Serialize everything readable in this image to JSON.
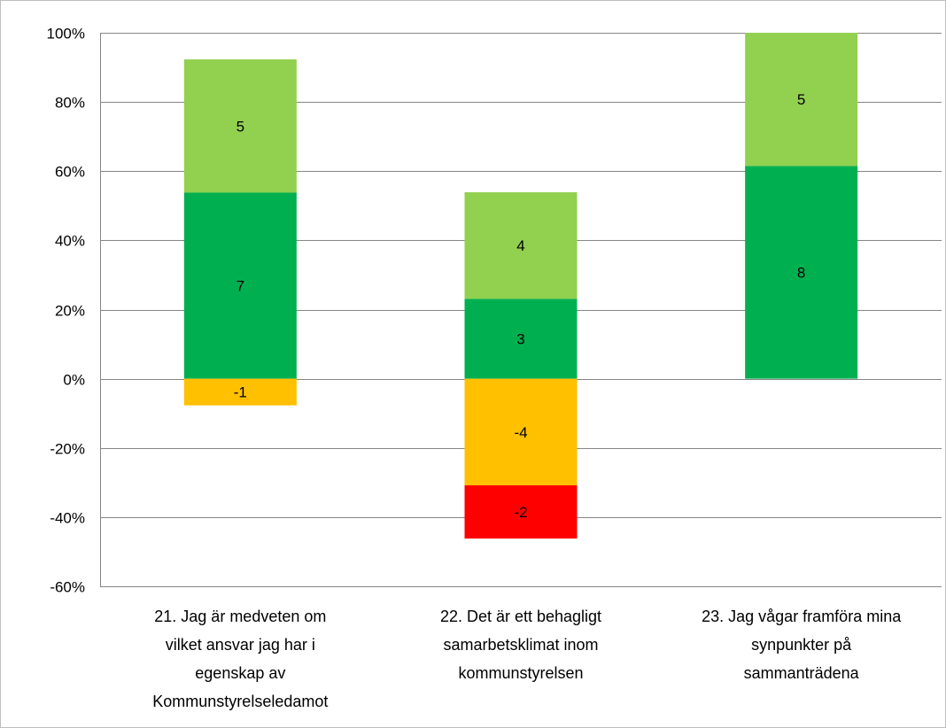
{
  "chart_data": {
    "type": "bar",
    "stacked": true,
    "categories": [
      [
        "21. Jag är medveten om",
        "vilket ansvar jag har i",
        "egenskap av",
        "Kommunstyrelseledamot"
      ],
      [
        "22. Det är ett behagligt",
        "samarbetsklimat inom",
        "kommunstyrelsen"
      ],
      [
        "23. Jag vågar framföra mina",
        "synpunkter på",
        "sammanträdena"
      ]
    ],
    "series": [
      {
        "color": "#00b050",
        "percent": [
          53.8,
          23.1,
          61.5
        ],
        "labels": [
          "7",
          "3",
          "8"
        ]
      },
      {
        "color": "#92d050",
        "percent": [
          38.5,
          30.8,
          38.5
        ],
        "labels": [
          "5",
          "4",
          "5"
        ]
      },
      {
        "color": "#ffc000",
        "percent": [
          -7.7,
          -30.8,
          0
        ],
        "labels": [
          "-1",
          "-4",
          ""
        ]
      },
      {
        "color": "#ff0000",
        "percent": [
          0,
          -15.4,
          0
        ],
        "labels": [
          "",
          "-2",
          ""
        ]
      }
    ],
    "ylim": [
      -60,
      100
    ],
    "yticks": [
      100,
      80,
      60,
      40,
      20,
      0,
      -20,
      -40,
      -60
    ],
    "ytick_labels": [
      "100%",
      "80%",
      "60%",
      "40%",
      "20%",
      "0%",
      "-20%",
      "-40%",
      "-60%"
    ],
    "grid": true,
    "legend": "none"
  }
}
